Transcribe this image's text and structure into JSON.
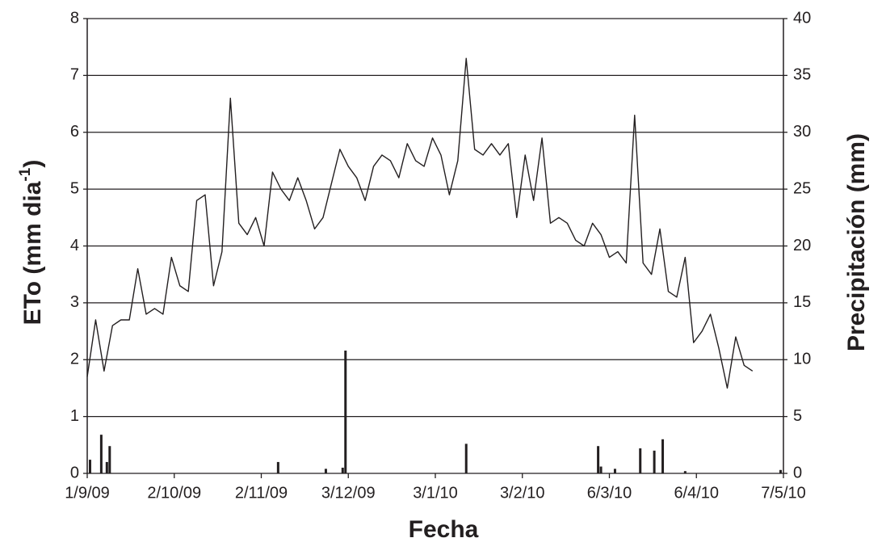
{
  "chart_data": {
    "type": "line",
    "xlabel": "Fecha",
    "ylabel": {
      "text": "ETo (mm dia",
      "sup": "-1",
      "end": ")"
    },
    "y2label": "Precipitación (mm)",
    "xlim": [
      "2009-09-01",
      "2010-05-07"
    ],
    "xticks": [
      {
        "value": "2009-09-01",
        "label": "1/9/09"
      },
      {
        "value": "2009-10-02",
        "label": "2/10/09"
      },
      {
        "value": "2009-11-02",
        "label": "2/11/09"
      },
      {
        "value": "2009-12-03",
        "label": "3/12/09"
      },
      {
        "value": "2010-01-03",
        "label": "3/1/10"
      },
      {
        "value": "2010-02-03",
        "label": "3/2/10"
      },
      {
        "value": "2010-03-06",
        "label": "6/3/10"
      },
      {
        "value": "2010-04-06",
        "label": "6/4/10"
      },
      {
        "value": "2010-05-07",
        "label": "7/5/10"
      }
    ],
    "ylim": [
      0,
      8
    ],
    "yticks": [
      0,
      1,
      2,
      3,
      4,
      5,
      6,
      7,
      8
    ],
    "y2lim": [
      0,
      40
    ],
    "y2ticks": [
      0,
      5,
      10,
      15,
      20,
      25,
      30,
      35,
      40
    ],
    "grid": true,
    "series": [
      {
        "type": "line",
        "color": "#231f20",
        "x": [
          "2009-09-01",
          "2009-09-04",
          "2009-09-07",
          "2009-09-10",
          "2009-09-13",
          "2009-09-16",
          "2009-09-19",
          "2009-09-22",
          "2009-09-25",
          "2009-09-28",
          "2009-10-01",
          "2009-10-04",
          "2009-10-07",
          "2009-10-10",
          "2009-10-13",
          "2009-10-16",
          "2009-10-19",
          "2009-10-22",
          "2009-10-25",
          "2009-10-28",
          "2009-10-31",
          "2009-11-03",
          "2009-11-06",
          "2009-11-09",
          "2009-11-12",
          "2009-11-15",
          "2009-11-18",
          "2009-11-21",
          "2009-11-24",
          "2009-11-27",
          "2009-11-30",
          "2009-12-03",
          "2009-12-06",
          "2009-12-09",
          "2009-12-12",
          "2009-12-15",
          "2009-12-18",
          "2009-12-21",
          "2009-12-24",
          "2009-12-27",
          "2009-12-30",
          "2010-01-02",
          "2010-01-05",
          "2010-01-08",
          "2010-01-11",
          "2010-01-14",
          "2010-01-17",
          "2010-01-20",
          "2010-01-23",
          "2010-01-26",
          "2010-01-29",
          "2010-02-01",
          "2010-02-04",
          "2010-02-07",
          "2010-02-10",
          "2010-02-13",
          "2010-02-16",
          "2010-02-19",
          "2010-02-22",
          "2010-02-25",
          "2010-02-28",
          "2010-03-03",
          "2010-03-06",
          "2010-03-09",
          "2010-03-12",
          "2010-03-15",
          "2010-03-18",
          "2010-03-21",
          "2010-03-24",
          "2010-03-27",
          "2010-03-30",
          "2010-04-02",
          "2010-04-05",
          "2010-04-08",
          "2010-04-11",
          "2010-04-14",
          "2010-04-17",
          "2010-04-20",
          "2010-04-23",
          "2010-04-26"
        ],
        "values": [
          1.7,
          2.7,
          1.8,
          2.6,
          2.7,
          2.7,
          3.6,
          2.8,
          2.9,
          2.8,
          3.8,
          3.3,
          3.2,
          4.8,
          4.9,
          3.3,
          3.9,
          6.6,
          4.4,
          4.2,
          4.5,
          4.0,
          5.3,
          5.0,
          4.8,
          5.2,
          4.8,
          4.3,
          4.5,
          5.1,
          5.7,
          5.4,
          5.2,
          4.8,
          5.4,
          5.6,
          5.5,
          5.2,
          5.8,
          5.5,
          5.4,
          5.9,
          5.6,
          4.9,
          5.5,
          7.3,
          5.7,
          5.6,
          5.8,
          5.6,
          5.8,
          4.5,
          5.6,
          4.8,
          5.9,
          4.4,
          4.5,
          4.4,
          4.1,
          4.0,
          4.4,
          4.2,
          3.8,
          3.9,
          3.7,
          6.3,
          3.7,
          3.5,
          4.3,
          3.2,
          3.1,
          3.8,
          2.3,
          2.5,
          2.8,
          2.2,
          1.5,
          2.4,
          1.9,
          1.8
        ]
      },
      {
        "type": "bar",
        "axis": "y2",
        "color": "#231f20",
        "x": [
          "2009-09-02",
          "2009-09-06",
          "2009-09-08",
          "2009-09-09",
          "2009-11-08",
          "2009-11-25",
          "2009-12-01",
          "2009-12-02",
          "2010-01-14",
          "2010-03-02",
          "2010-03-03",
          "2010-03-08",
          "2010-03-17",
          "2010-03-22",
          "2010-03-25",
          "2010-04-02",
          "2010-05-06"
        ],
        "values": [
          1.2,
          3.4,
          1.0,
          2.4,
          1.0,
          0.4,
          0.5,
          10.8,
          2.6,
          2.4,
          0.6,
          0.4,
          2.2,
          2.0,
          3.0,
          0.2,
          0.3
        ]
      }
    ]
  }
}
